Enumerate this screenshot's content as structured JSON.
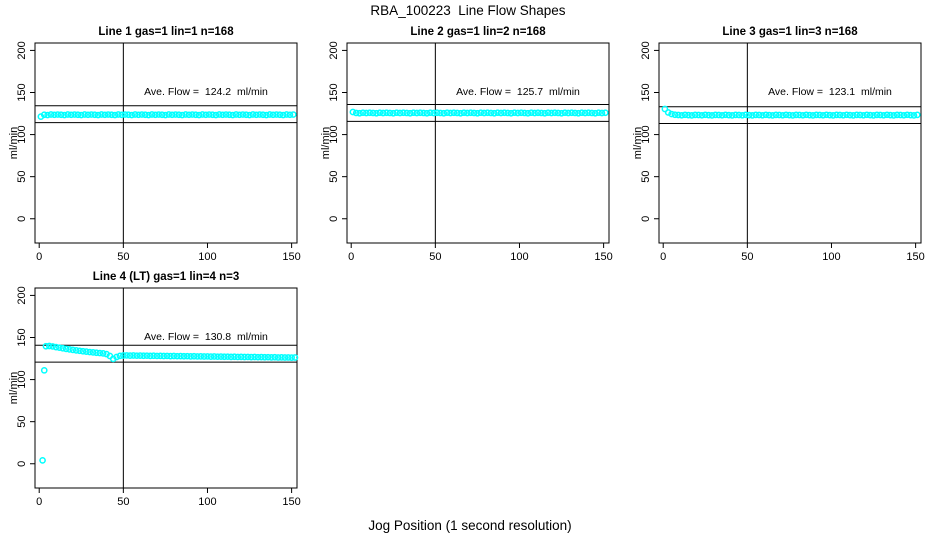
{
  "title": "RBA_100223  Line Flow Shapes",
  "xlabel": "Jog Position (1 second resolution)",
  "colors": {
    "points": "#00FFFF",
    "axis": "#000000",
    "background": "#FFFFFF"
  },
  "marker": "open-circle",
  "chart_data": [
    {
      "type": "scatter",
      "title": "Line 1 gas=1 lin=1 n=168",
      "ylabel": "ml/min",
      "ave_flow": 124.2,
      "annotation": "Ave. Flow =  124.2  ml/min",
      "ref_lines": [
        134.2,
        114.2
      ],
      "vline": 50,
      "x_ticks": [
        0,
        50,
        100,
        150
      ],
      "y_ticks": [
        0,
        50,
        100,
        150,
        200
      ],
      "xlim": [
        -2.5,
        153.2
      ],
      "ylim": [
        -28.8,
        208.8
      ],
      "series": {
        "x_start": 1,
        "x_step": 2,
        "y": [
          121.3,
          123.6,
          123.2,
          123.9,
          123.5,
          123.8,
          123.6,
          123.2,
          123.9,
          123.5,
          123.8,
          123.6,
          123.2,
          123.9,
          123.5,
          123.8,
          123.6,
          123.2,
          123.9,
          123.5,
          123.8,
          123.6,
          123.2,
          123.9,
          123.5,
          123.8,
          123.6,
          123.2,
          123.9,
          123.5,
          123.8,
          123.6,
          123.2,
          123.9,
          123.5,
          123.8,
          123.6,
          123.2,
          123.9,
          123.5,
          123.8,
          123.6,
          123.2,
          123.9,
          123.5,
          123.8,
          123.6,
          123.2,
          123.9,
          123.5,
          123.8,
          123.6,
          123.2,
          123.9,
          123.5,
          123.8,
          123.6,
          123.2,
          123.9,
          123.5,
          123.8,
          123.6,
          123.2,
          123.9,
          123.5,
          123.8,
          123.6,
          123.2,
          123.9,
          123.5,
          123.8,
          123.6,
          123.2,
          123.9,
          123.5,
          123.8
        ]
      },
      "extra_points": []
    },
    {
      "type": "scatter",
      "title": "Line 2 gas=1 lin=2 n=168",
      "ylabel": "ml/min",
      "ave_flow": 125.7,
      "annotation": "Ave. Flow =  125.7  ml/min",
      "ref_lines": [
        135.7,
        115.7
      ],
      "vline": 50,
      "x_ticks": [
        0,
        50,
        100,
        150
      ],
      "y_ticks": [
        0,
        50,
        100,
        150,
        200
      ],
      "xlim": [
        -2.5,
        153.2
      ],
      "ylim": [
        -28.8,
        208.8
      ],
      "series": {
        "x_start": 1,
        "x_step": 2,
        "y": [
          126.8,
          125.7,
          125.3,
          126.0,
          125.6,
          125.9,
          125.7,
          125.3,
          126.0,
          125.6,
          125.9,
          125.7,
          125.3,
          126.0,
          125.6,
          125.9,
          125.7,
          125.3,
          126.0,
          125.6,
          125.9,
          125.7,
          125.3,
          126.0,
          125.6,
          125.9,
          125.7,
          125.3,
          126.0,
          125.6,
          125.9,
          125.7,
          125.3,
          126.0,
          125.6,
          125.9,
          125.7,
          125.3,
          126.0,
          125.6,
          125.9,
          125.7,
          125.3,
          126.0,
          125.6,
          125.9,
          125.7,
          125.3,
          126.0,
          125.6,
          125.9,
          125.7,
          125.3,
          126.0,
          125.6,
          125.9,
          125.7,
          125.3,
          126.0,
          125.6,
          125.9,
          125.7,
          125.3,
          126.0,
          125.6,
          125.9,
          125.7,
          125.3,
          126.0,
          125.6,
          125.9,
          125.7,
          125.3,
          126.0,
          125.6,
          125.9
        ]
      },
      "extra_points": []
    },
    {
      "type": "scatter",
      "title": "Line 3 gas=1 lin=3 n=168",
      "ylabel": "ml/min",
      "ave_flow": 123.1,
      "annotation": "Ave. Flow =  123.1  ml/min",
      "ref_lines": [
        133.1,
        113.1
      ],
      "vline": 50,
      "x_ticks": [
        0,
        50,
        100,
        150
      ],
      "y_ticks": [
        0,
        50,
        100,
        150,
        200
      ],
      "xlim": [
        -2.5,
        153.2
      ],
      "ylim": [
        -28.8,
        208.8
      ],
      "series": {
        "x_start": 1,
        "x_step": 2,
        "y": [
          130.4,
          126.3,
          124.4,
          123.6,
          123.3,
          122.9,
          123.5,
          123.1,
          122.8,
          123.4,
          123.3,
          122.9,
          123.5,
          123.1,
          122.8,
          123.4,
          123.3,
          122.9,
          123.5,
          123.1,
          122.8,
          123.4,
          123.3,
          122.9,
          123.5,
          123.1,
          122.8,
          123.4,
          123.3,
          122.9,
          123.5,
          123.1,
          122.8,
          123.4,
          123.3,
          122.9,
          123.5,
          123.1,
          122.8,
          123.4,
          123.3,
          122.9,
          123.5,
          123.1,
          122.8,
          123.4,
          123.3,
          122.9,
          123.5,
          123.1,
          122.8,
          123.4,
          123.3,
          122.9,
          123.5,
          123.1,
          122.8,
          123.4,
          123.3,
          122.9,
          123.5,
          123.1,
          122.8,
          123.4,
          123.3,
          122.9,
          123.5,
          123.1,
          122.8,
          123.4,
          123.3,
          122.9,
          123.5,
          123.1,
          122.8,
          123.4
        ]
      },
      "extra_points": []
    },
    {
      "type": "scatter",
      "title": "Line 4 (LT) gas=1 lin=4 n=3",
      "ylabel": "ml/min",
      "ave_flow": 130.8,
      "annotation": "Ave. Flow =  130.8  ml/min",
      "ref_lines": [
        140.8,
        120.8
      ],
      "vline": 50,
      "x_ticks": [
        0,
        50,
        100,
        150
      ],
      "y_ticks": [
        0,
        50,
        100,
        150,
        200
      ],
      "xlim": [
        -2.5,
        153.2
      ],
      "ylim": [
        -28.8,
        208.8
      ],
      "series": {
        "x_start": 4,
        "x_step": 2,
        "y": [
          139.6,
          139.9,
          139.4,
          138.6,
          137.9,
          137.2,
          136.5,
          135.9,
          135.3,
          134.7,
          134.2,
          133.7,
          133.2,
          132.7,
          132.3,
          131.9,
          131.5,
          131.1,
          130.3,
          128.0,
          124.6,
          126.8,
          128.2,
          128.6,
          128.7,
          128.5,
          128.6,
          128.4,
          128.5,
          128.3,
          128.4,
          128.2,
          128.3,
          128.1,
          128.2,
          128.0,
          128.1,
          127.9,
          128.0,
          127.8,
          127.9,
          127.7,
          127.8,
          127.6,
          127.7,
          127.5,
          127.6,
          127.4,
          127.5,
          127.3,
          127.4,
          127.2,
          127.3,
          127.1,
          127.2,
          127.0,
          127.1,
          126.9,
          127.0,
          126.8,
          126.9,
          126.7,
          126.8,
          126.6,
          126.7,
          126.5,
          126.6,
          126.4,
          126.5,
          126.3,
          126.4,
          126.2,
          126.3,
          126.1,
          126.2
        ]
      },
      "extra_points": [
        [
          2,
          4.0
        ],
        [
          3,
          111.0
        ]
      ]
    }
  ]
}
